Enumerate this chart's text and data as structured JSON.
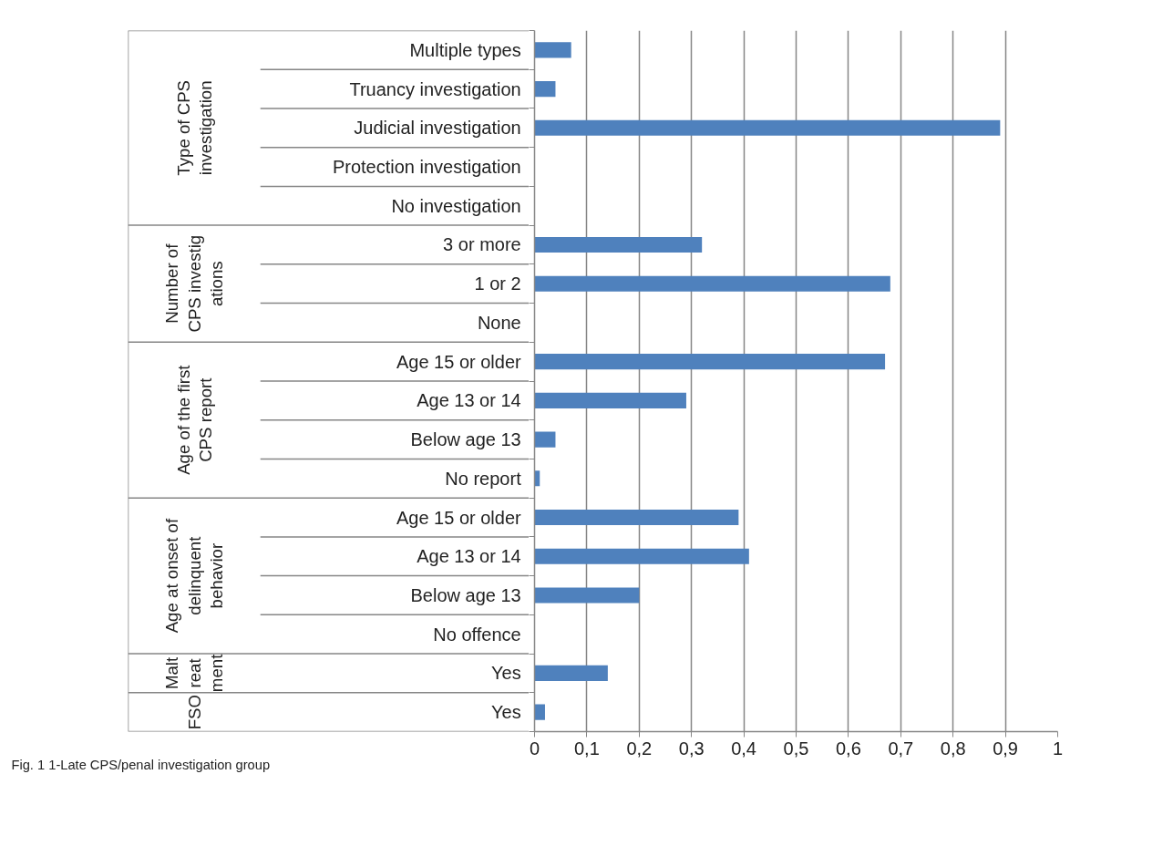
{
  "chart_data": {
    "type": "bar",
    "orientation": "horizontal",
    "categories": [
      "Multiple types",
      "Truancy investigation",
      "Judicial investigation",
      "Protection investigation",
      "No investigation",
      "3 or more",
      "1 or 2",
      "None",
      "Age 15 or older",
      "Age 13 or 14",
      "Below age 13",
      "No report",
      "Age 15 or older",
      "Age 13 or 14",
      "Below age 13",
      "No offence",
      "Yes",
      "Yes"
    ],
    "values": [
      0.07,
      0.04,
      0.89,
      0,
      0,
      0.32,
      0.68,
      0,
      0.67,
      0.29,
      0.04,
      0.01,
      0.39,
      0.41,
      0.2,
      0,
      0.14,
      0.02
    ],
    "color": "#4f81bd",
    "xlim": [
      0,
      1
    ],
    "xticks": [
      0,
      {
        "value": 0.1,
        "label": "0,1"
      },
      {
        "value": 0.2,
        "label": "0,2"
      },
      {
        "value": 0.3,
        "label": "0,3"
      },
      {
        "value": 0.4,
        "label": "0,4"
      },
      {
        "value": 0.5,
        "label": "0,5"
      },
      {
        "value": 0.6,
        "label": "0,6"
      },
      {
        "value": 0.7,
        "label": "0,7"
      },
      {
        "value": 0.8,
        "label": "0,8"
      },
      {
        "value": 0.9,
        "label": "0,9"
      },
      1
    ],
    "grid": "x",
    "annotations": [
      "Type of CPS investigation",
      "Number of CPS investigations",
      "Age of the first CPS report",
      "Age at onset of delinquent behavior",
      "Maltreatment",
      "FSO",
      "Fig. 1 1-Late CPS/penal investigation group"
    ]
  }
}
